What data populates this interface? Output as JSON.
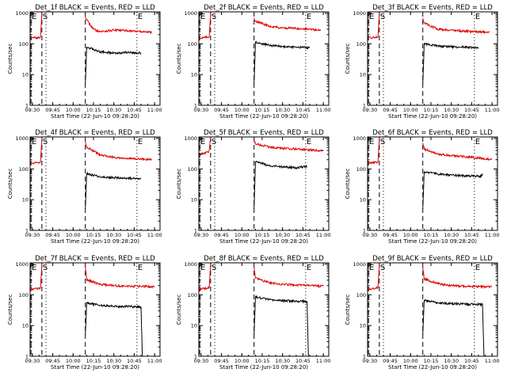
{
  "figure": {
    "y_axis_label": "Counts/sec",
    "x_axis_label": "Start Time (22-Jun-10 09:28:20)",
    "x_tick_labels": [
      "09:30",
      "09:45",
      "10:00",
      "10:15",
      "10:30",
      "10:45",
      "11:00"
    ],
    "y_tick_labels": [
      "1",
      "10",
      "100",
      "1000"
    ],
    "colors": {
      "events": "#000000",
      "lld": "#e00000",
      "axes": "#000000",
      "background": "#ffffff"
    }
  },
  "chart_data": [
    {
      "type": "line",
      "title": "Det_1f BLACK = Events, RED = LLD",
      "xlabel": "Start Time (22-Jun-10 09:28:20)",
      "ylabel": "Counts/sec",
      "y_scale": "log",
      "ylim": [
        1,
        1100
      ],
      "xlim": [
        "09:28:20",
        "11:04:00"
      ],
      "markers": [
        {
          "label": "E",
          "time": "09:29:00",
          "style": "dashed"
        },
        {
          "label": "S",
          "time": "09:37:00",
          "style": "dashed"
        },
        {
          "label": "",
          "time": "09:40:00",
          "style": "dotted"
        },
        {
          "label": "",
          "time": "10:09:00",
          "style": "dashed"
        },
        {
          "label": "E",
          "time": "10:47:00",
          "style": "dotted"
        }
      ],
      "series": [
        {
          "name": "RED = LLD",
          "color": "#e00000",
          "x": [
            "09:28:20",
            "09:32:00",
            "09:35:00",
            "09:36:00",
            "09:37:00",
            "09:40:00",
            "10:09:00",
            "10:10:00",
            "10:15:00",
            "10:20:00",
            "10:30:00",
            "10:40:00",
            "10:50:00",
            "10:58:00"
          ],
          "y": [
            150,
            160,
            155,
            170,
            1000,
            null,
            800,
            600,
            300,
            250,
            280,
            270,
            250,
            240
          ]
        },
        {
          "name": "BLACK = Events",
          "color": "#000000",
          "x": [
            "10:09:00",
            "10:10:00",
            "10:15:00",
            "10:20:00",
            "10:30:00",
            "10:40:00",
            "10:50:00"
          ],
          "y": [
            5,
            80,
            65,
            55,
            50,
            52,
            50
          ]
        }
      ]
    },
    {
      "type": "line",
      "title": "Det_2f BLACK = Events, RED = LLD",
      "xlabel": "Start Time (22-Jun-10 09:28:20)",
      "ylabel": "Counts/sec",
      "y_scale": "log",
      "ylim": [
        1,
        1100
      ],
      "xlim": [
        "09:28:20",
        "11:04:00"
      ],
      "markers": [
        {
          "label": "E",
          "time": "09:29:00",
          "style": "dashed"
        },
        {
          "label": "S",
          "time": "09:37:00",
          "style": "dashed"
        },
        {
          "label": "",
          "time": "09:40:00",
          "style": "dotted"
        },
        {
          "label": "",
          "time": "10:09:00",
          "style": "dashed"
        },
        {
          "label": "E",
          "time": "10:47:00",
          "style": "dotted"
        }
      ],
      "series": [
        {
          "name": "RED = LLD",
          "color": "#e00000",
          "x": [
            "09:28:20",
            "09:32:00",
            "09:35:00",
            "09:36:00",
            "09:37:00",
            "09:40:00",
            "10:09:00",
            "10:10:00",
            "10:20:00",
            "10:30:00",
            "10:40:00",
            "10:50:00",
            "10:58:00"
          ],
          "y": [
            150,
            160,
            165,
            170,
            1000,
            null,
            700,
            550,
            380,
            330,
            320,
            300,
            270
          ]
        },
        {
          "name": "BLACK = Events",
          "color": "#000000",
          "x": [
            "10:09:00",
            "10:10:00",
            "10:20:00",
            "10:30:00",
            "10:40:00",
            "10:50:00"
          ],
          "y": [
            5,
            115,
            90,
            82,
            78,
            75
          ]
        }
      ]
    },
    {
      "type": "line",
      "title": "Det_3f BLACK = Events, RED = LLD",
      "xlabel": "Start Time (22-Jun-10 09:28:20)",
      "ylabel": "Counts/sec",
      "y_scale": "log",
      "ylim": [
        1,
        1100
      ],
      "xlim": [
        "09:28:20",
        "11:04:00"
      ],
      "markers": [
        {
          "label": "E",
          "time": "09:29:00",
          "style": "dashed"
        },
        {
          "label": "S",
          "time": "09:37:00",
          "style": "dashed"
        },
        {
          "label": "",
          "time": "09:40:00",
          "style": "dotted"
        },
        {
          "label": "",
          "time": "10:09:00",
          "style": "dashed"
        },
        {
          "label": "E",
          "time": "10:47:00",
          "style": "dotted"
        }
      ],
      "series": [
        {
          "name": "RED = LLD",
          "color": "#e00000",
          "x": [
            "09:28:20",
            "09:32:00",
            "09:35:00",
            "09:36:00",
            "09:37:00",
            "09:40:00",
            "10:09:00",
            "10:10:00",
            "10:20:00",
            "10:30:00",
            "10:40:00",
            "10:50:00",
            "10:58:00"
          ],
          "y": [
            150,
            160,
            165,
            170,
            1000,
            null,
            700,
            480,
            300,
            280,
            260,
            250,
            240
          ]
        },
        {
          "name": "BLACK = Events",
          "color": "#000000",
          "x": [
            "10:09:00",
            "10:10:00",
            "10:20:00",
            "10:30:00",
            "10:40:00",
            "10:50:00"
          ],
          "y": [
            5,
            100,
            85,
            80,
            78,
            75
          ]
        }
      ]
    },
    {
      "type": "line",
      "title": "Det_4f BLACK = Events, RED = LLD",
      "xlabel": "Start Time (22-Jun-10 09:28:20)",
      "ylabel": "Counts/sec",
      "y_scale": "log",
      "ylim": [
        1,
        1100
      ],
      "xlim": [
        "09:28:20",
        "11:04:00"
      ],
      "markers": [
        {
          "label": "E",
          "time": "09:29:00",
          "style": "dashed"
        },
        {
          "label": "S",
          "time": "09:37:00",
          "style": "dashed"
        },
        {
          "label": "",
          "time": "09:40:00",
          "style": "dotted"
        },
        {
          "label": "",
          "time": "10:09:00",
          "style": "dashed"
        },
        {
          "label": "E",
          "time": "10:47:00",
          "style": "dotted"
        }
      ],
      "series": [
        {
          "name": "RED = LLD",
          "color": "#e00000",
          "x": [
            "09:28:20",
            "09:32:00",
            "09:35:00",
            "09:36:00",
            "09:37:00",
            "09:40:00",
            "10:09:00",
            "10:10:00",
            "10:20:00",
            "10:30:00",
            "10:40:00",
            "10:50:00",
            "10:58:00"
          ],
          "y": [
            150,
            160,
            165,
            170,
            1000,
            null,
            800,
            520,
            280,
            240,
            220,
            210,
            200
          ]
        },
        {
          "name": "BLACK = Events",
          "color": "#000000",
          "x": [
            "10:09:00",
            "10:10:00",
            "10:20:00",
            "10:30:00",
            "10:40:00",
            "10:50:00"
          ],
          "y": [
            5,
            70,
            55,
            52,
            50,
            48
          ]
        }
      ]
    },
    {
      "type": "line",
      "title": "Det_5f BLACK = Events, RED = LLD",
      "xlabel": "Start Time (22-Jun-10 09:28:20)",
      "ylabel": "Counts/sec",
      "y_scale": "log",
      "ylim": [
        1,
        1100
      ],
      "xlim": [
        "09:28:20",
        "11:04:00"
      ],
      "markers": [
        {
          "label": "E",
          "time": "09:29:00",
          "style": "dashed"
        },
        {
          "label": "S",
          "time": "09:37:00",
          "style": "dashed"
        },
        {
          "label": "",
          "time": "09:40:00",
          "style": "dotted"
        },
        {
          "label": "",
          "time": "10:09:00",
          "style": "dashed"
        },
        {
          "label": "E",
          "time": "10:47:00",
          "style": "dotted"
        }
      ],
      "series": [
        {
          "name": "RED = LLD",
          "color": "#e00000",
          "x": [
            "09:28:20",
            "09:32:00",
            "09:35:00",
            "09:36:00",
            "09:37:00",
            "09:40:00",
            "10:09:00",
            "10:10:00",
            "10:20:00",
            "10:30:00",
            "10:40:00",
            "10:50:00",
            "11:00:00"
          ],
          "y": [
            300,
            320,
            350,
            400,
            1000,
            null,
            850,
            650,
            520,
            470,
            450,
            420,
            380
          ]
        },
        {
          "name": "BLACK = Events",
          "color": "#000000",
          "x": [
            "10:09:00",
            "10:10:00",
            "10:20:00",
            "10:30:00",
            "10:40:00",
            "10:48:00"
          ],
          "y": [
            5,
            170,
            130,
            115,
            110,
            120
          ]
        }
      ]
    },
    {
      "type": "line",
      "title": "Det_6f BLACK = Events, RED = LLD",
      "xlabel": "Start Time (22-Jun-10 09:28:20)",
      "ylabel": "Counts/sec",
      "y_scale": "log",
      "ylim": [
        1,
        1100
      ],
      "xlim": [
        "09:28:20",
        "11:04:00"
      ],
      "markers": [
        {
          "label": "E",
          "time": "09:29:00",
          "style": "dashed"
        },
        {
          "label": "S",
          "time": "09:37:00",
          "style": "dashed"
        },
        {
          "label": "",
          "time": "09:40:00",
          "style": "dotted"
        },
        {
          "label": "",
          "time": "10:09:00",
          "style": "dashed"
        },
        {
          "label": "E",
          "time": "10:47:00",
          "style": "dotted"
        }
      ],
      "series": [
        {
          "name": "RED = LLD",
          "color": "#e00000",
          "x": [
            "09:28:20",
            "09:32:00",
            "09:35:00",
            "09:36:00",
            "09:37:00",
            "09:40:00",
            "10:09:00",
            "10:10:00",
            "10:20:00",
            "10:30:00",
            "10:40:00",
            "10:50:00",
            "11:00:00"
          ],
          "y": [
            150,
            160,
            165,
            170,
            1000,
            null,
            700,
            450,
            300,
            270,
            250,
            230,
            200
          ]
        },
        {
          "name": "BLACK = Events",
          "color": "#000000",
          "x": [
            "10:09:00",
            "10:10:00",
            "10:20:00",
            "10:30:00",
            "10:40:00",
            "10:52:00",
            "10:53:00"
          ],
          "y": [
            5,
            80,
            68,
            63,
            60,
            58,
            70
          ]
        }
      ]
    },
    {
      "type": "line",
      "title": "Det_7f BLACK = Events, RED = LLD",
      "xlabel": "Start Time (22-Jun-10 09:28:20)",
      "ylabel": "Counts/sec",
      "y_scale": "log",
      "ylim": [
        1,
        1100
      ],
      "xlim": [
        "09:28:20",
        "11:04:00"
      ],
      "markers": [
        {
          "label": "E",
          "time": "09:29:00",
          "style": "dashed"
        },
        {
          "label": "S",
          "time": "09:37:00",
          "style": "dashed"
        },
        {
          "label": "",
          "time": "09:40:00",
          "style": "dotted"
        },
        {
          "label": "",
          "time": "10:09:00",
          "style": "dashed"
        },
        {
          "label": "E",
          "time": "10:47:00",
          "style": "dotted"
        }
      ],
      "series": [
        {
          "name": "RED = LLD",
          "color": "#e00000",
          "x": [
            "09:28:20",
            "09:32:00",
            "09:35:00",
            "09:36:00",
            "09:37:00",
            "09:40:00",
            "10:09:00",
            "10:10:00",
            "10:20:00",
            "10:30:00",
            "10:40:00",
            "10:50:00",
            "11:00:00"
          ],
          "y": [
            150,
            160,
            165,
            170,
            1000,
            null,
            850,
            300,
            220,
            200,
            190,
            190,
            185
          ]
        },
        {
          "name": "BLACK = Events",
          "color": "#000000",
          "x": [
            "10:09:00",
            "10:10:00",
            "10:20:00",
            "10:30:00",
            "10:40:00",
            "10:50:00",
            "10:51:00"
          ],
          "y": [
            5,
            55,
            45,
            42,
            42,
            40,
            1
          ]
        }
      ]
    },
    {
      "type": "line",
      "title": "Det_8f BLACK = Events, RED = LLD",
      "xlabel": "Start Time (22-Jun-10 09:28:20)",
      "ylabel": "Counts/sec",
      "y_scale": "log",
      "ylim": [
        1,
        1100
      ],
      "xlim": [
        "09:28:20",
        "11:04:00"
      ],
      "markers": [
        {
          "label": "E",
          "time": "09:29:00",
          "style": "dashed"
        },
        {
          "label": "S",
          "time": "09:37:00",
          "style": "dashed"
        },
        {
          "label": "",
          "time": "09:40:00",
          "style": "dotted"
        },
        {
          "label": "",
          "time": "10:09:00",
          "style": "dashed"
        },
        {
          "label": "E",
          "time": "10:47:00",
          "style": "dotted"
        }
      ],
      "series": [
        {
          "name": "RED = LLD",
          "color": "#e00000",
          "x": [
            "09:28:20",
            "09:32:00",
            "09:35:00",
            "09:36:00",
            "09:37:00",
            "09:40:00",
            "10:09:00",
            "10:10:00",
            "10:20:00",
            "10:30:00",
            "10:40:00",
            "10:50:00",
            "11:00:00"
          ],
          "y": [
            150,
            160,
            165,
            170,
            1000,
            null,
            800,
            350,
            250,
            220,
            210,
            200,
            190
          ]
        },
        {
          "name": "BLACK = Events",
          "color": "#000000",
          "x": [
            "10:09:00",
            "10:10:00",
            "10:20:00",
            "10:30:00",
            "10:40:00",
            "10:48:00",
            "10:49:00"
          ],
          "y": [
            5,
            85,
            70,
            65,
            62,
            60,
            1
          ]
        }
      ]
    },
    {
      "type": "line",
      "title": "Det_9f BLACK = Events, RED = LLD",
      "xlabel": "Start Time (22-Jun-10 09:28:20)",
      "ylabel": "Counts/sec",
      "y_scale": "log",
      "ylim": [
        1,
        1100
      ],
      "xlim": [
        "09:28:20",
        "11:04:00"
      ],
      "markers": [
        {
          "label": "E",
          "time": "09:29:00",
          "style": "dashed"
        },
        {
          "label": "S",
          "time": "09:37:00",
          "style": "dashed"
        },
        {
          "label": "",
          "time": "09:40:00",
          "style": "dotted"
        },
        {
          "label": "",
          "time": "10:09:00",
          "style": "dashed"
        },
        {
          "label": "E",
          "time": "10:47:00",
          "style": "dotted"
        }
      ],
      "series": [
        {
          "name": "RED = LLD",
          "color": "#e00000",
          "x": [
            "09:28:20",
            "09:32:00",
            "09:35:00",
            "09:36:00",
            "09:37:00",
            "09:40:00",
            "10:09:00",
            "10:10:00",
            "10:20:00",
            "10:30:00",
            "10:40:00",
            "10:50:00",
            "11:00:00"
          ],
          "y": [
            150,
            160,
            165,
            170,
            1000,
            null,
            800,
            330,
            230,
            200,
            190,
            185,
            180
          ]
        },
        {
          "name": "BLACK = Events",
          "color": "#000000",
          "x": [
            "10:09:00",
            "10:10:00",
            "10:20:00",
            "10:30:00",
            "10:40:00",
            "10:53:00",
            "10:54:00"
          ],
          "y": [
            5,
            65,
            55,
            52,
            50,
            48,
            1
          ]
        }
      ]
    }
  ]
}
